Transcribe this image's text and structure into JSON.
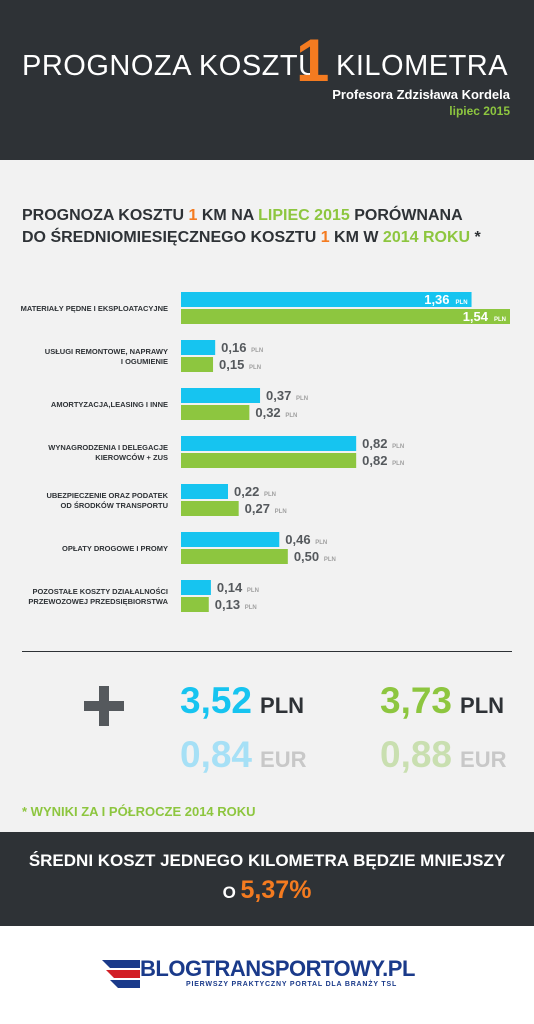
{
  "header": {
    "title_left": "PROGNOZA KOSZTU",
    "title_number": "1",
    "title_right": "KILOMETRA",
    "subtitle": "Profesora Zdzisława Kordela",
    "date": "lipiec 2015"
  },
  "main_title": {
    "p1": "PROGNOZA KOSZTU ",
    "p2": "1",
    "p3": " KM NA ",
    "p4": "LIPIEC 2015",
    "p5": " PORÓWNANA",
    "p6": "DO ŚREDNIOMIESIĘCZNEGO KOSZTU ",
    "p7": "1",
    "p8": " KM W ",
    "p9": "2014 ROKU",
    "p10": " *"
  },
  "chart_data": {
    "type": "bar",
    "orientation": "horizontal",
    "unit": "PLN",
    "categories": [
      [
        "MATERIAŁY PĘDNE I EKSPLOATACYJNE"
      ],
      [
        "USŁUGI REMONTOWE, NAPRAWY",
        "I OGUMIENIE"
      ],
      [
        "AMORTYZACJA,LEASING I INNE"
      ],
      [
        "WYNAGRODZENIA I DELEGACJE",
        "KIEROWCÓW + ZUS"
      ],
      [
        "UBEZPIECZENIE ORAZ PODATEK",
        "OD ŚRODKÓW TRANSPORTU"
      ],
      [
        "OPŁATY DROGOWE I PROMY"
      ],
      [
        "POZOSTAŁE KOSZTY DZIAŁALNOŚCI",
        "PRZEWOZOWEJ PRZEDSIĘBIORSTWA"
      ]
    ],
    "series": [
      {
        "values": [
          1.36,
          0.16,
          0.37,
          0.82,
          0.22,
          0.46,
          0.14
        ],
        "labels": [
          "1,36",
          "0,16",
          "0,37",
          "0,82",
          "0,22",
          "0,46",
          "0,14"
        ],
        "color": "#16c4f0"
      },
      {
        "values": [
          1.54,
          0.15,
          0.32,
          0.82,
          0.27,
          0.5,
          0.13
        ],
        "labels": [
          "1,54",
          "0,15",
          "0,32",
          "0,82",
          "0,27",
          "0,50",
          "0,13"
        ],
        "color": "#8dc63f"
      }
    ],
    "xlim": [
      0,
      1.54
    ]
  },
  "totals": {
    "pln_2015": "3,52",
    "pln_2014": "3,73",
    "eur_2015": "0,84",
    "eur_2014": "0,88",
    "pln_unit": "PLN",
    "eur_unit": "EUR"
  },
  "colors": {
    "blue": "#16c4f0",
    "light_blue": "#a6e0f6",
    "green": "#8dc63f",
    "light_green": "#c9dfb0",
    "orange": "#f47b20",
    "dark": "#2e3236"
  },
  "note": "* WYNIKI ZA I PÓŁROCZE 2014 ROKU",
  "footer": {
    "line1": "ŚREDNI KOSZT JEDNEGO KILOMETRA BĘDZIE MNIEJSZY",
    "line2_prefix": "O ",
    "line2_value": "5,37%"
  },
  "logo": {
    "name": "BLOGTRANSPORTOWY.PL",
    "tagline": "PIERWSZY PRAKTYCZNY PORTAL DLA BRANŻY TSL"
  }
}
